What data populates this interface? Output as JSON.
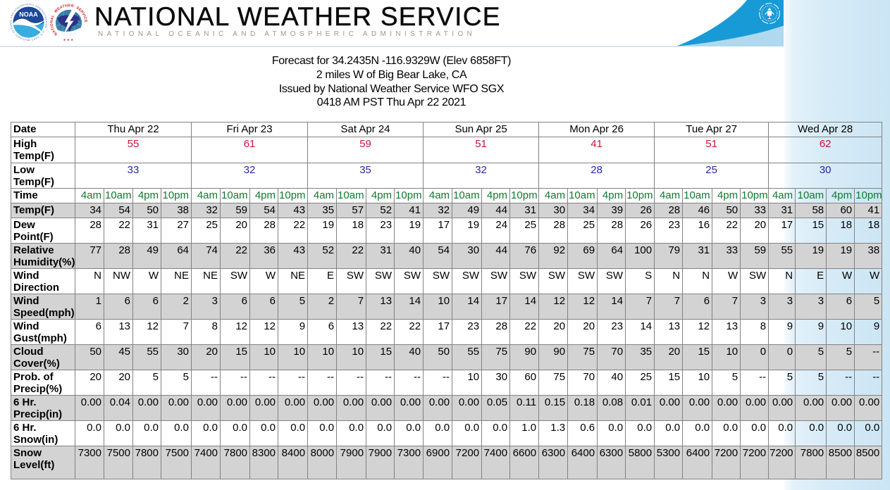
{
  "header": {
    "title": "NATIONAL WEATHER SERVICE",
    "subtitle": "NATIONAL OCEANIC AND ATMOSPHERIC ADMINISTRATION",
    "noaa_logo": "noaa-logo",
    "noaa_label": "NOAA",
    "nws_logo": "nws-logo",
    "doc_seal": "department-of-commerce-seal"
  },
  "forecast_info": {
    "line1": "Forecast for 34.2435N -116.9329W (Elev 6858FT)",
    "line2": "2 miles W of Big Bear Lake, CA",
    "line3": "Issued by National Weather Service WFO SGX",
    "line4": "0418 AM PST Thu Apr 22 2021"
  },
  "colors": {
    "high_temp": "#cf1236",
    "low_temp": "#2828a5",
    "time": "#11792f",
    "shaded_row": "#d3d3d3",
    "table_border": "#828282",
    "swoosh_dark": "#189ad7",
    "swoosh_light": "#b0d8ee",
    "side_band": "#cbe5f4"
  },
  "table": {
    "row_labels": {
      "date": "Date",
      "high": "High Temp(F)",
      "low": "Low Temp(F)",
      "time": "Time"
    },
    "times_per_day": [
      "4am",
      "10am",
      "4pm",
      "10pm"
    ],
    "days": [
      {
        "date": "Thu Apr 22",
        "high": "55",
        "low": "33"
      },
      {
        "date": "Fri Apr 23",
        "high": "61",
        "low": "32"
      },
      {
        "date": "Sat Apr 24",
        "high": "59",
        "low": "35"
      },
      {
        "date": "Sun Apr 25",
        "high": "51",
        "low": "32"
      },
      {
        "date": "Mon Apr 26",
        "high": "41",
        "low": "28"
      },
      {
        "date": "Tue Apr 27",
        "high": "51",
        "low": "25"
      },
      {
        "date": "Wed Apr 28",
        "high": "62",
        "low": "30"
      }
    ],
    "rows": [
      {
        "label": "Temp(F)",
        "shaded": true,
        "values": [
          "34",
          "54",
          "50",
          "38",
          "32",
          "59",
          "54",
          "43",
          "35",
          "57",
          "52",
          "41",
          "32",
          "49",
          "44",
          "31",
          "30",
          "34",
          "39",
          "26",
          "28",
          "46",
          "50",
          "33",
          "31",
          "58",
          "60",
          "41"
        ]
      },
      {
        "label": "Dew Point(F)",
        "shaded": false,
        "values": [
          "28",
          "22",
          "31",
          "27",
          "25",
          "20",
          "28",
          "22",
          "19",
          "18",
          "23",
          "19",
          "17",
          "19",
          "24",
          "25",
          "28",
          "25",
          "28",
          "26",
          "23",
          "16",
          "22",
          "20",
          "17",
          "15",
          "18",
          "18"
        ]
      },
      {
        "label": "Relative Humidity(%)",
        "shaded": true,
        "values": [
          "77",
          "28",
          "49",
          "64",
          "74",
          "22",
          "36",
          "43",
          "52",
          "22",
          "31",
          "40",
          "54",
          "30",
          "44",
          "76",
          "92",
          "69",
          "64",
          "100",
          "79",
          "31",
          "33",
          "59",
          "55",
          "19",
          "19",
          "38"
        ]
      },
      {
        "label": "Wind Direction",
        "shaded": false,
        "values": [
          "N",
          "NW",
          "W",
          "NE",
          "NE",
          "SW",
          "W",
          "NE",
          "E",
          "SW",
          "SW",
          "SW",
          "SW",
          "SW",
          "SW",
          "SW",
          "SW",
          "SW",
          "SW",
          "S",
          "N",
          "N",
          "W",
          "SW",
          "N",
          "E",
          "W",
          "W"
        ]
      },
      {
        "label": "Wind Speed(mph)",
        "shaded": true,
        "values": [
          "1",
          "6",
          "6",
          "2",
          "3",
          "6",
          "6",
          "5",
          "2",
          "7",
          "13",
          "14",
          "10",
          "14",
          "17",
          "14",
          "12",
          "12",
          "14",
          "7",
          "7",
          "6",
          "7",
          "3",
          "3",
          "3",
          "6",
          "5"
        ]
      },
      {
        "label": "Wind Gust(mph)",
        "shaded": false,
        "values": [
          "6",
          "13",
          "12",
          "7",
          "8",
          "12",
          "12",
          "9",
          "6",
          "13",
          "22",
          "22",
          "17",
          "23",
          "28",
          "22",
          "20",
          "20",
          "23",
          "14",
          "13",
          "12",
          "13",
          "8",
          "9",
          "9",
          "10",
          "9"
        ]
      },
      {
        "label": "Cloud Cover(%)",
        "shaded": true,
        "values": [
          "50",
          "45",
          "55",
          "30",
          "20",
          "15",
          "10",
          "10",
          "10",
          "10",
          "15",
          "40",
          "50",
          "55",
          "75",
          "90",
          "90",
          "75",
          "70",
          "35",
          "20",
          "15",
          "10",
          "0",
          "0",
          "5",
          "5",
          "--"
        ]
      },
      {
        "label": "Prob. of Precip(%)",
        "shaded": false,
        "values": [
          "20",
          "20",
          "5",
          "5",
          "--",
          "--",
          "--",
          "--",
          "--",
          "--",
          "--",
          "--",
          "--",
          "10",
          "30",
          "60",
          "75",
          "70",
          "40",
          "25",
          "15",
          "10",
          "5",
          "--",
          "5",
          "5",
          "--",
          "--"
        ]
      },
      {
        "label": "6 Hr. Precip(in)",
        "shaded": true,
        "values": [
          "0.00",
          "0.04",
          "0.00",
          "0.00",
          "0.00",
          "0.00",
          "0.00",
          "0.00",
          "0.00",
          "0.00",
          "0.00",
          "0.00",
          "0.00",
          "0.00",
          "0.05",
          "0.11",
          "0.15",
          "0.18",
          "0.08",
          "0.01",
          "0.00",
          "0.00",
          "0.00",
          "0.00",
          "0.00",
          "0.00",
          "0.00",
          "0.00"
        ]
      },
      {
        "label": "6 Hr. Snow(in)",
        "shaded": false,
        "values": [
          "0.0",
          "0.0",
          "0.0",
          "0.0",
          "0.0",
          "0.0",
          "0.0",
          "0.0",
          "0.0",
          "0.0",
          "0.0",
          "0.0",
          "0.0",
          "0.0",
          "0.0",
          "1.0",
          "1.3",
          "0.6",
          "0.0",
          "0.0",
          "0.0",
          "0.0",
          "0.0",
          "0.0",
          "0.0",
          "0.0",
          "0.0",
          "0.0"
        ]
      },
      {
        "label": "Snow Level(ft)",
        "shaded": true,
        "values": [
          "7300",
          "7500",
          "7800",
          "7500",
          "7400",
          "7800",
          "8300",
          "8400",
          "8000",
          "7900",
          "7900",
          "7300",
          "6900",
          "7200",
          "7400",
          "6600",
          "6300",
          "6400",
          "6300",
          "5800",
          "5300",
          "6400",
          "7200",
          "7200",
          "7200",
          "7800",
          "8500",
          "8500"
        ]
      }
    ]
  }
}
